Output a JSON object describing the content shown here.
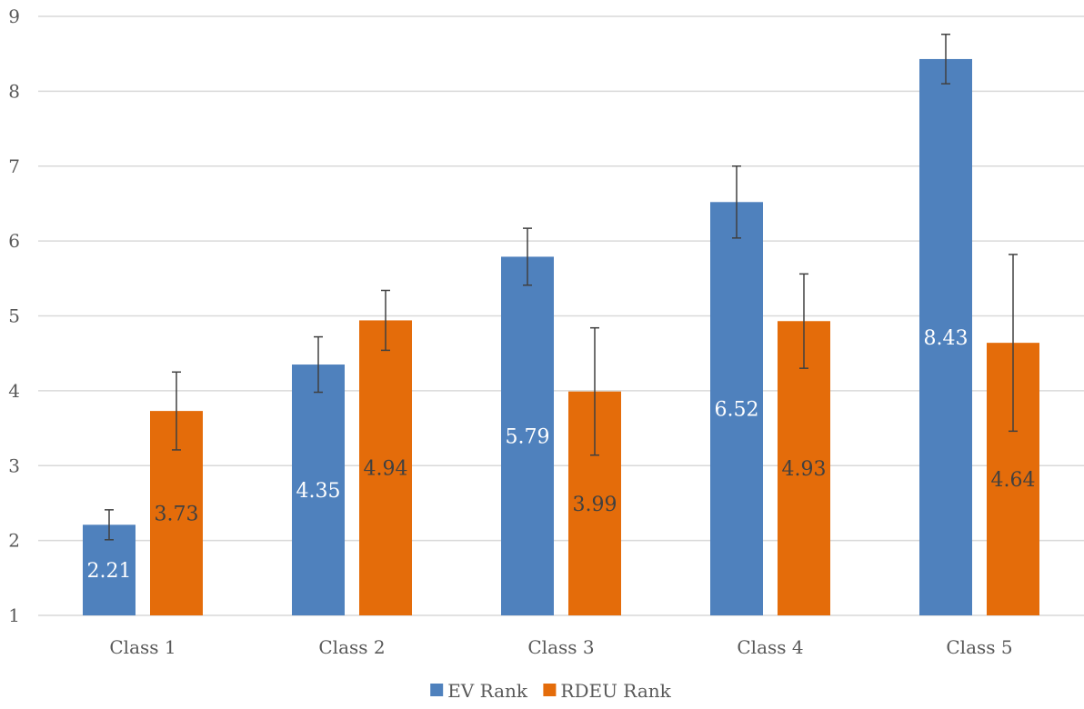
{
  "chart_data": {
    "type": "bar",
    "title": "",
    "xlabel": "",
    "ylabel": "",
    "categories": [
      "Class 1",
      "Class 2",
      "Class 3",
      "Class 4",
      "Class 5"
    ],
    "ylim": [
      1,
      9
    ],
    "yticks": [
      "1",
      "2",
      "3",
      "4",
      "5",
      "6",
      "7",
      "8",
      "9"
    ],
    "grid": true,
    "legend_position": "bottom",
    "series": [
      {
        "name": "EV Rank",
        "color": "#4f81bd",
        "label_color": "#ffffff",
        "values": [
          2.21,
          4.35,
          5.79,
          6.52,
          8.43
        ],
        "labels": [
          "2.21",
          "4.35",
          "5.79",
          "6.52",
          "8.43"
        ],
        "error": [
          0.2,
          0.37,
          0.38,
          0.48,
          0.33
        ]
      },
      {
        "name": "RDEU Rank",
        "color": "#e46c0a",
        "label_color": "#404040",
        "values": [
          3.73,
          4.94,
          3.99,
          4.93,
          4.64
        ],
        "labels": [
          "3.73",
          "4.94",
          "3.99",
          "4.93",
          "4.64"
        ],
        "error": [
          0.52,
          0.4,
          0.85,
          0.63,
          1.18
        ]
      }
    ]
  }
}
